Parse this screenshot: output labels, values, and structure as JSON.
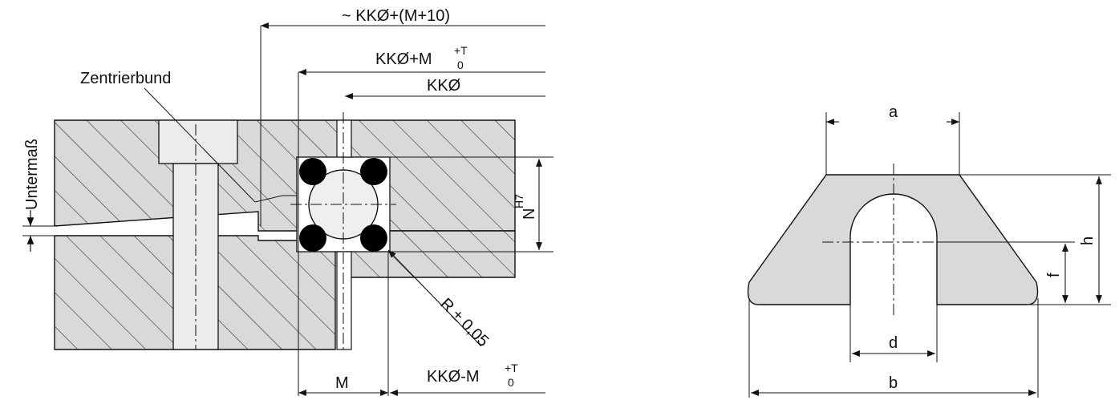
{
  "left_drawing": {
    "dimensions": {
      "kk_plus_m10": "~ KKØ+(M+10)",
      "kk_plus_m": "KKØ+M",
      "kk_plus_m_sup": "+T",
      "kk_plus_m_sub": "0",
      "kk": "KKØ",
      "m": "M",
      "kk_minus_m": "KKØ-M",
      "kk_minus_m_sup": "+T",
      "kk_minus_m_sub": "0",
      "n": "N",
      "n_sup": "H7",
      "radius": "R ± 0,05"
    },
    "labels": {
      "zentrierbund": "Zentrierbund",
      "untermass": "Untermaß"
    }
  },
  "right_drawing": {
    "dimensions": {
      "a": "a",
      "b": "b",
      "d": "d",
      "f": "f",
      "h": "h"
    }
  },
  "colors": {
    "fill": "#d9d9d9",
    "line": "#111111",
    "ball": "#e9e9e9",
    "oring": "#000000"
  }
}
